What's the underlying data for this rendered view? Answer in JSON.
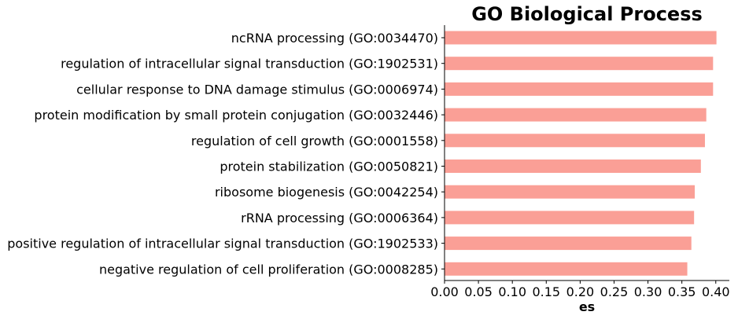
{
  "chart_data": {
    "type": "bar",
    "orientation": "horizontal",
    "title": "GO Biological Process",
    "xlabel": "es",
    "ylabel": "",
    "xlim": [
      0,
      0.42
    ],
    "xticks": [
      "0.00",
      "0.05",
      "0.10",
      "0.15",
      "0.20",
      "0.25",
      "0.30",
      "0.35",
      "0.40"
    ],
    "bar_color": "#fa9f96",
    "grid": false,
    "legend": "none",
    "categories": [
      "ncRNA processing (GO:0034470)",
      "regulation of intracellular signal transduction (GO:1902531)",
      "cellular response to DNA damage stimulus (GO:0006974)",
      "protein modification by small protein conjugation (GO:0032446)",
      "regulation of cell growth (GO:0001558)",
      "protein stabilization (GO:0050821)",
      "ribosome biogenesis (GO:0042254)",
      "rRNA processing (GO:0006364)",
      "positive regulation of intracellular signal transduction (GO:1902533)",
      "negative regulation of cell proliferation (GO:0008285)"
    ],
    "values": [
      0.401,
      0.396,
      0.396,
      0.386,
      0.384,
      0.378,
      0.369,
      0.368,
      0.364,
      0.358
    ]
  }
}
